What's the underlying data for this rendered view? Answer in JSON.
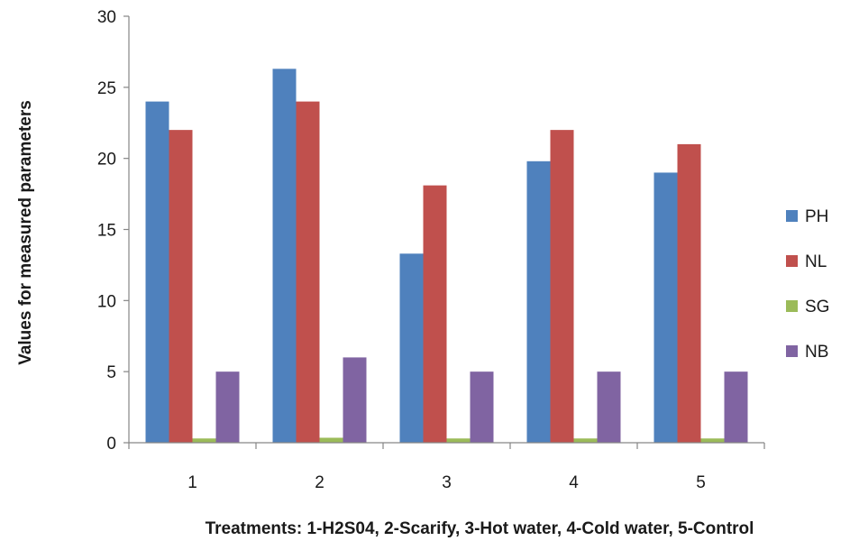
{
  "chart_data": {
    "type": "bar",
    "title": "",
    "xlabel": "Treatments: 1-H2S04, 2-Scarify, 3-Hot water, 4-Cold water, 5-Control",
    "ylabel": "Values for measured parameters",
    "ylim": [
      0,
      30
    ],
    "yticks": [
      0,
      5,
      10,
      15,
      20,
      25,
      30
    ],
    "categories": [
      "1",
      "2",
      "3",
      "4",
      "5"
    ],
    "series": [
      {
        "name": "PH",
        "color": "#4F81BD",
        "values": [
          24,
          26.3,
          13.3,
          19.8,
          19
        ]
      },
      {
        "name": "NL",
        "color": "#C0504D",
        "values": [
          22,
          24,
          18.1,
          22,
          21
        ]
      },
      {
        "name": "SG",
        "color": "#9BBB59",
        "values": [
          0.3,
          0.35,
          0.3,
          0.3,
          0.3
        ]
      },
      {
        "name": "NB",
        "color": "#8064A2",
        "values": [
          5,
          6,
          5,
          5,
          5
        ]
      }
    ],
    "grid": false,
    "legend_position": "right"
  }
}
